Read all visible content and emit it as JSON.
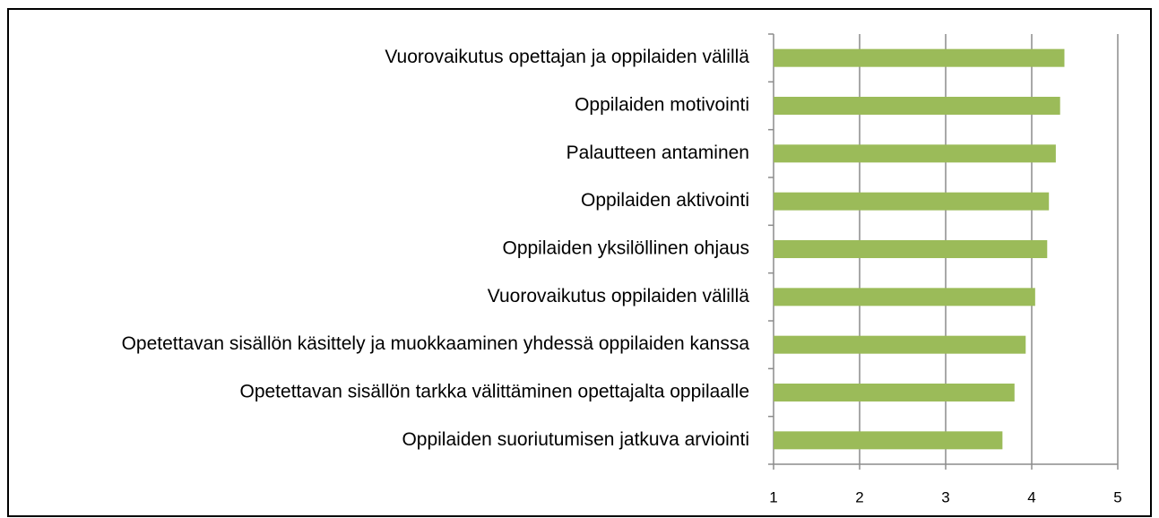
{
  "chart_data": {
    "type": "bar",
    "orientation": "horizontal",
    "categories": [
      "Vuorovaikutus opettajan ja oppilaiden välillä",
      "Oppilaiden motivointi",
      "Palautteen antaminen",
      "Oppilaiden aktivointi",
      "Oppilaiden yksilöllinen ohjaus",
      "Vuorovaikutus oppilaiden välillä",
      "Opetettavan sisällön käsittely ja muokkaaminen yhdessä oppilaiden kanssa",
      "Opetettavan sisällön tarkka välittäminen opettajalta oppilaalle",
      "Oppilaiden suoriutumisen jatkuva arviointi"
    ],
    "values": [
      4.38,
      4.33,
      4.28,
      4.2,
      4.18,
      4.04,
      3.93,
      3.8,
      3.66
    ],
    "color": "#9bbb59",
    "xlim": [
      1,
      5
    ],
    "xticks": [
      1,
      2,
      3,
      4,
      5
    ],
    "grid": true
  }
}
